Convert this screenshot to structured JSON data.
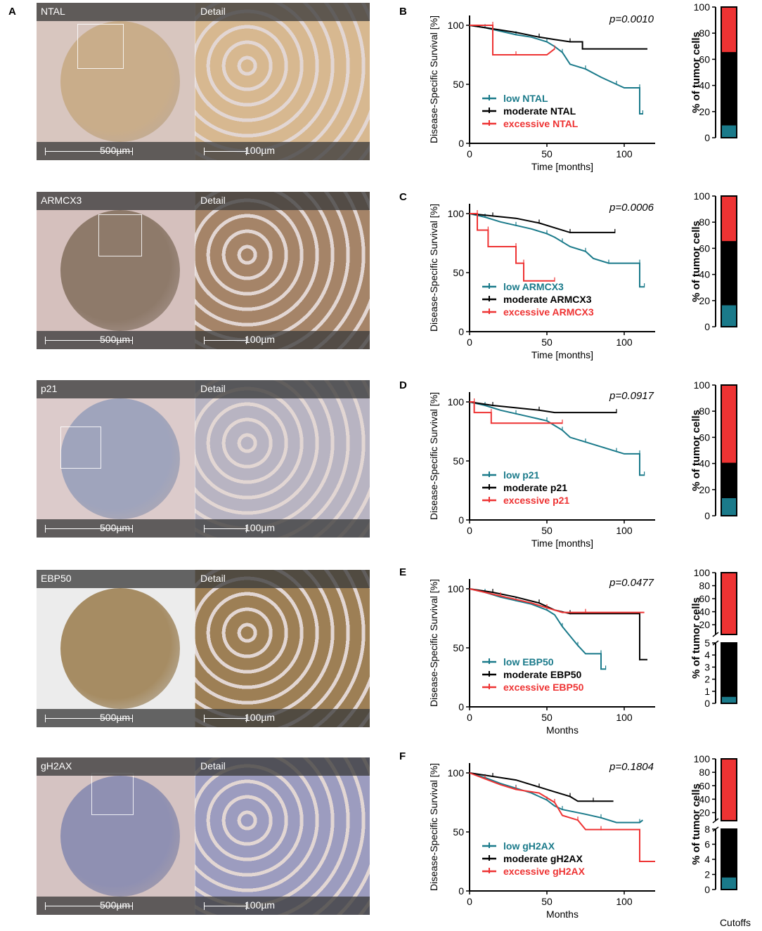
{
  "panel_letters": {
    "A": "A",
    "B": "B",
    "C": "C",
    "D": "D",
    "E": "E",
    "F": "F"
  },
  "tissue_panels": [
    {
      "marker": "NTAL",
      "detail": "Detail",
      "scale_left": "500µm",
      "scale_right": "100µm",
      "bg": "#d8c6bf",
      "core": "#c9ad8a",
      "detail_bg": "#d7b890"
    },
    {
      "marker": "ARMCX3",
      "detail": "Detail",
      "scale_left": "500µm",
      "scale_right": "100µm",
      "bg": "#d5c0bd",
      "core": "#8e7a6a",
      "detail_bg": "#a58468"
    },
    {
      "marker": "p21",
      "detail": "Detail",
      "scale_left": "500µm",
      "scale_right": "100µm",
      "bg": "#dccbcb",
      "core": "#9fa4bc",
      "detail_bg": "#b8b4c2"
    },
    {
      "marker": "EBP50",
      "detail": "Detail",
      "scale_left": "500µm",
      "scale_right": "100µm",
      "bg": "#ececec",
      "core": "#a68c63",
      "detail_bg": "#9d7f55"
    },
    {
      "marker": "gH2AX",
      "detail": "Detail",
      "scale_left": "500µm",
      "scale_right": "100µm",
      "bg": "#d5c3c2",
      "core": "#8f90b2",
      "detail_bg": "#9c9cbf"
    }
  ],
  "colors": {
    "low": "#1a7a8a",
    "moderate": "#000000",
    "excessive": "#ee3333"
  },
  "chart_data": [
    {
      "type": "line",
      "panel": "B",
      "pvalue": "p=0.0010",
      "ylabel": "Disease-Specific Survival [%]",
      "xlabel": "Time [months]",
      "xlim": [
        0,
        120
      ],
      "ylim": [
        0,
        100
      ],
      "xticks": [
        0,
        50,
        100
      ],
      "yticks": [
        0,
        50,
        100
      ],
      "legend": [
        "low NTAL",
        "moderate NTAL",
        "excessive NTAL"
      ],
      "series": [
        {
          "name": "low NTAL",
          "points": [
            [
              0,
              100
            ],
            [
              10,
              98
            ],
            [
              20,
              95
            ],
            [
              30,
              92
            ],
            [
              40,
              90
            ],
            [
              50,
              86
            ],
            [
              55,
              82
            ],
            [
              60,
              77
            ],
            [
              65,
              67
            ],
            [
              75,
              63
            ],
            [
              85,
              56
            ],
            [
              95,
              50
            ],
            [
              100,
              47
            ],
            [
              110,
              47
            ],
            [
              110,
              25
            ],
            [
              112,
              25
            ]
          ]
        },
        {
          "name": "moderate NTAL",
          "points": [
            [
              0,
              100
            ],
            [
              15,
              97
            ],
            [
              30,
              94
            ],
            [
              45,
              90
            ],
            [
              55,
              88
            ],
            [
              65,
              86
            ],
            [
              73,
              86
            ],
            [
              73,
              80
            ],
            [
              115,
              80
            ]
          ]
        },
        {
          "name": "excessive NTAL",
          "points": [
            [
              0,
              100
            ],
            [
              15,
              100
            ],
            [
              15,
              75
            ],
            [
              30,
              75
            ],
            [
              50,
              75
            ],
            [
              55,
              80
            ]
          ]
        }
      ]
    },
    {
      "type": "line",
      "panel": "C",
      "pvalue": "p=0.0006",
      "ylabel": "Disease-Specific Survival [%]",
      "xlabel": "Time [months]",
      "xlim": [
        0,
        120
      ],
      "ylim": [
        0,
        100
      ],
      "xticks": [
        0,
        50,
        100
      ],
      "yticks": [
        0,
        50,
        100
      ],
      "legend": [
        "low ARMCX3",
        "moderate ARMCX3",
        "excessive ARMCX3"
      ],
      "series": [
        {
          "name": "low ARMCX3",
          "points": [
            [
              0,
              100
            ],
            [
              10,
              97
            ],
            [
              20,
              93
            ],
            [
              30,
              90
            ],
            [
              40,
              87
            ],
            [
              50,
              83
            ],
            [
              55,
              80
            ],
            [
              60,
              76
            ],
            [
              65,
              72
            ],
            [
              75,
              68
            ],
            [
              80,
              62
            ],
            [
              90,
              58
            ],
            [
              100,
              58
            ],
            [
              110,
              58
            ],
            [
              110,
              38
            ],
            [
              113,
              38
            ]
          ]
        },
        {
          "name": "moderate ARMCX3",
          "points": [
            [
              0,
              100
            ],
            [
              15,
              98
            ],
            [
              30,
              96
            ],
            [
              45,
              92
            ],
            [
              55,
              88
            ],
            [
              65,
              84
            ],
            [
              75,
              84
            ],
            [
              94,
              84
            ]
          ]
        },
        {
          "name": "excessive ARMCX3",
          "points": [
            [
              0,
              100
            ],
            [
              5,
              100
            ],
            [
              5,
              86
            ],
            [
              12,
              86
            ],
            [
              12,
              72
            ],
            [
              30,
              72
            ],
            [
              30,
              58
            ],
            [
              35,
              58
            ],
            [
              35,
              43
            ],
            [
              55,
              43
            ]
          ]
        }
      ]
    },
    {
      "type": "line",
      "panel": "D",
      "pvalue": "p=0.0917",
      "ylabel": "Disease-Specific Survival [%]",
      "xlabel": "Time [months]",
      "xlim": [
        0,
        120
      ],
      "ylim": [
        0,
        100
      ],
      "xticks": [
        0,
        50,
        100
      ],
      "yticks": [
        0,
        50,
        100
      ],
      "legend": [
        "low p21",
        "moderate p21",
        "excessive p21"
      ],
      "series": [
        {
          "name": "low p21",
          "points": [
            [
              0,
              100
            ],
            [
              10,
              97
            ],
            [
              20,
              93
            ],
            [
              30,
              90
            ],
            [
              40,
              87
            ],
            [
              50,
              84
            ],
            [
              55,
              80
            ],
            [
              60,
              76
            ],
            [
              65,
              70
            ],
            [
              75,
              66
            ],
            [
              85,
              62
            ],
            [
              95,
              58
            ],
            [
              100,
              56
            ],
            [
              110,
              56
            ],
            [
              110,
              38
            ],
            [
              113,
              38
            ]
          ]
        },
        {
          "name": "moderate p21",
          "points": [
            [
              0,
              100
            ],
            [
              15,
              97
            ],
            [
              30,
              95
            ],
            [
              45,
              93
            ],
            [
              55,
              91
            ],
            [
              95,
              91
            ]
          ]
        },
        {
          "name": "excessive p21",
          "points": [
            [
              0,
              100
            ],
            [
              3,
              100
            ],
            [
              3,
              91
            ],
            [
              14,
              91
            ],
            [
              14,
              82
            ],
            [
              60,
              82
            ]
          ]
        }
      ]
    },
    {
      "type": "line",
      "panel": "E",
      "pvalue": "p=0.0477",
      "ylabel": "Disease-Specific Survival [%]",
      "xlabel": "Months",
      "xlim": [
        0,
        120
      ],
      "ylim": [
        0,
        100
      ],
      "xticks": [
        0,
        50,
        100
      ],
      "yticks": [
        0,
        50,
        100
      ],
      "legend": [
        "low EBP50",
        "moderate EBP50",
        "excessive EBP50"
      ],
      "series": [
        {
          "name": "low EBP50",
          "points": [
            [
              0,
              100
            ],
            [
              10,
              97
            ],
            [
              20,
              93
            ],
            [
              30,
              90
            ],
            [
              40,
              87
            ],
            [
              50,
              82
            ],
            [
              55,
              78
            ],
            [
              60,
              68
            ],
            [
              65,
              60
            ],
            [
              70,
              52
            ],
            [
              75,
              45
            ],
            [
              85,
              45
            ],
            [
              85,
              32
            ],
            [
              88,
              32
            ]
          ]
        },
        {
          "name": "moderate EBP50",
          "points": [
            [
              0,
              100
            ],
            [
              15,
              97
            ],
            [
              30,
              93
            ],
            [
              45,
              88
            ],
            [
              55,
              82
            ],
            [
              65,
              79
            ],
            [
              110,
              79
            ],
            [
              110,
              40
            ],
            [
              115,
              40
            ]
          ]
        },
        {
          "name": "excessive EBP50",
          "points": [
            [
              0,
              100
            ],
            [
              20,
              94
            ],
            [
              40,
              88
            ],
            [
              50,
              84
            ],
            [
              60,
              80
            ],
            [
              75,
              80
            ],
            [
              113,
              80
            ]
          ]
        }
      ]
    },
    {
      "type": "line",
      "panel": "F",
      "pvalue": "p=0.1804",
      "ylabel": "Disease-Specific Survival [%]",
      "xlabel": "Months",
      "xlim": [
        0,
        120
      ],
      "ylim": [
        0,
        100
      ],
      "xticks": [
        0,
        50,
        100
      ],
      "yticks": [
        0,
        50,
        100
      ],
      "legend": [
        "low gH2AX",
        "moderate gH2AX",
        "excessive gH2AX"
      ],
      "series": [
        {
          "name": "low gH2AX",
          "points": [
            [
              0,
              100
            ],
            [
              10,
              96
            ],
            [
              20,
              91
            ],
            [
              30,
              87
            ],
            [
              40,
              83
            ],
            [
              50,
              77
            ],
            [
              55,
              72
            ],
            [
              60,
              69
            ],
            [
              75,
              65
            ],
            [
              85,
              62
            ],
            [
              95,
              58
            ],
            [
              110,
              58
            ],
            [
              112,
              60
            ]
          ]
        },
        {
          "name": "moderate gH2AX",
          "points": [
            [
              0,
              100
            ],
            [
              15,
              97
            ],
            [
              30,
              94
            ],
            [
              45,
              88
            ],
            [
              55,
              84
            ],
            [
              65,
              80
            ],
            [
              70,
              76
            ],
            [
              80,
              76
            ],
            [
              93,
              76
            ]
          ]
        },
        {
          "name": "excessive gH2AX",
          "points": [
            [
              0,
              100
            ],
            [
              10,
              95
            ],
            [
              20,
              90
            ],
            [
              30,
              86
            ],
            [
              45,
              83
            ],
            [
              55,
              75
            ],
            [
              60,
              64
            ],
            [
              70,
              60
            ],
            [
              75,
              52
            ],
            [
              85,
              52
            ],
            [
              110,
              52
            ],
            [
              110,
              25
            ],
            [
              120,
              25
            ]
          ]
        }
      ]
    },
    {
      "type": "bar",
      "panel": "B",
      "ylabel": "% of tumor cells",
      "segments": [
        {
          "name": "low",
          "from": 0,
          "to": 10
        },
        {
          "name": "moderate",
          "from": 10,
          "to": 65
        },
        {
          "name": "excessive",
          "from": 65,
          "to": 100
        }
      ],
      "ylim": [
        0,
        100
      ],
      "yticks": [
        0,
        20,
        40,
        60,
        80,
        100
      ]
    },
    {
      "type": "bar",
      "panel": "C",
      "ylabel": "% of tumor cells",
      "segments": [
        {
          "name": "low",
          "from": 0,
          "to": 17
        },
        {
          "name": "moderate",
          "from": 17,
          "to": 65
        },
        {
          "name": "excessive",
          "from": 65,
          "to": 100
        }
      ],
      "ylim": [
        0,
        100
      ],
      "yticks": [
        0,
        20,
        40,
        60,
        80,
        100
      ]
    },
    {
      "type": "bar",
      "panel": "D",
      "ylabel": "% of tumor cells",
      "segments": [
        {
          "name": "low",
          "from": 0,
          "to": 14
        },
        {
          "name": "moderate",
          "from": 14,
          "to": 40
        },
        {
          "name": "excessive",
          "from": 40,
          "to": 100
        }
      ],
      "ylim": [
        0,
        100
      ],
      "yticks": [
        0,
        20,
        40,
        60,
        80,
        100
      ]
    },
    {
      "type": "bar",
      "panel": "E",
      "ylabel": "% of tumor cells",
      "broken": true,
      "upper": {
        "ylim": [
          5,
          100
        ],
        "yticks": [
          20,
          40,
          60,
          80,
          100
        ]
      },
      "lower": {
        "ylim": [
          0,
          5
        ],
        "yticks": [
          0,
          1,
          2,
          3,
          4,
          5
        ]
      },
      "segments": [
        {
          "name": "low",
          "from": 0,
          "to": 0.6
        },
        {
          "name": "moderate",
          "from": 0.6,
          "to": 5
        },
        {
          "name": "excessive",
          "from": 5,
          "to": 100
        }
      ]
    },
    {
      "type": "bar",
      "panel": "F",
      "ylabel": "% of tumor cells",
      "broken": true,
      "xlabel": "Cutoffs",
      "upper": {
        "ylim": [
          8,
          100
        ],
        "yticks": [
          20,
          40,
          60,
          80,
          100
        ]
      },
      "lower": {
        "ylim": [
          0,
          8
        ],
        "yticks": [
          0,
          2,
          4,
          6,
          8
        ]
      },
      "segments": [
        {
          "name": "low",
          "from": 0,
          "to": 1.7
        },
        {
          "name": "moderate",
          "from": 1.7,
          "to": 8
        },
        {
          "name": "excessive",
          "from": 8,
          "to": 100
        }
      ]
    }
  ]
}
